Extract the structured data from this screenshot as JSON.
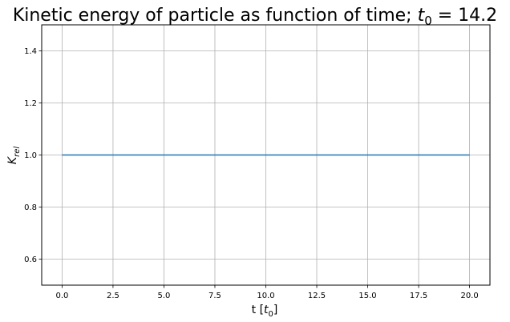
{
  "chart_data": {
    "type": "line",
    "title": "Kinetic energy of particle as function of time; ",
    "title_math_var": "t",
    "title_math_sub": "0",
    "title_math_rest": " = 14.2",
    "xlabel_main": "t [",
    "xlabel_var": "t",
    "xlabel_sub": "0",
    "xlabel_close": "]",
    "ylabel_var": "K",
    "ylabel_sub": "rel",
    "xlim": [
      -1.0,
      21.0
    ],
    "ylim": [
      0.5,
      1.5
    ],
    "xticks": [
      0.0,
      2.5,
      5.0,
      7.5,
      10.0,
      12.5,
      15.0,
      17.5,
      20.0
    ],
    "xtick_labels": [
      "0.0",
      "2.5",
      "5.0",
      "7.5",
      "10.0",
      "12.5",
      "15.0",
      "17.5",
      "20.0"
    ],
    "yticks": [
      0.6,
      0.8,
      1.0,
      1.2,
      1.4
    ],
    "ytick_labels": [
      "0.6",
      "0.8",
      "1.0",
      "1.2",
      "1.4"
    ],
    "grid": true,
    "series": [
      {
        "x": [
          0.0,
          20.0
        ],
        "y": [
          1.0,
          1.0
        ],
        "color": "#1f77b4"
      }
    ]
  }
}
